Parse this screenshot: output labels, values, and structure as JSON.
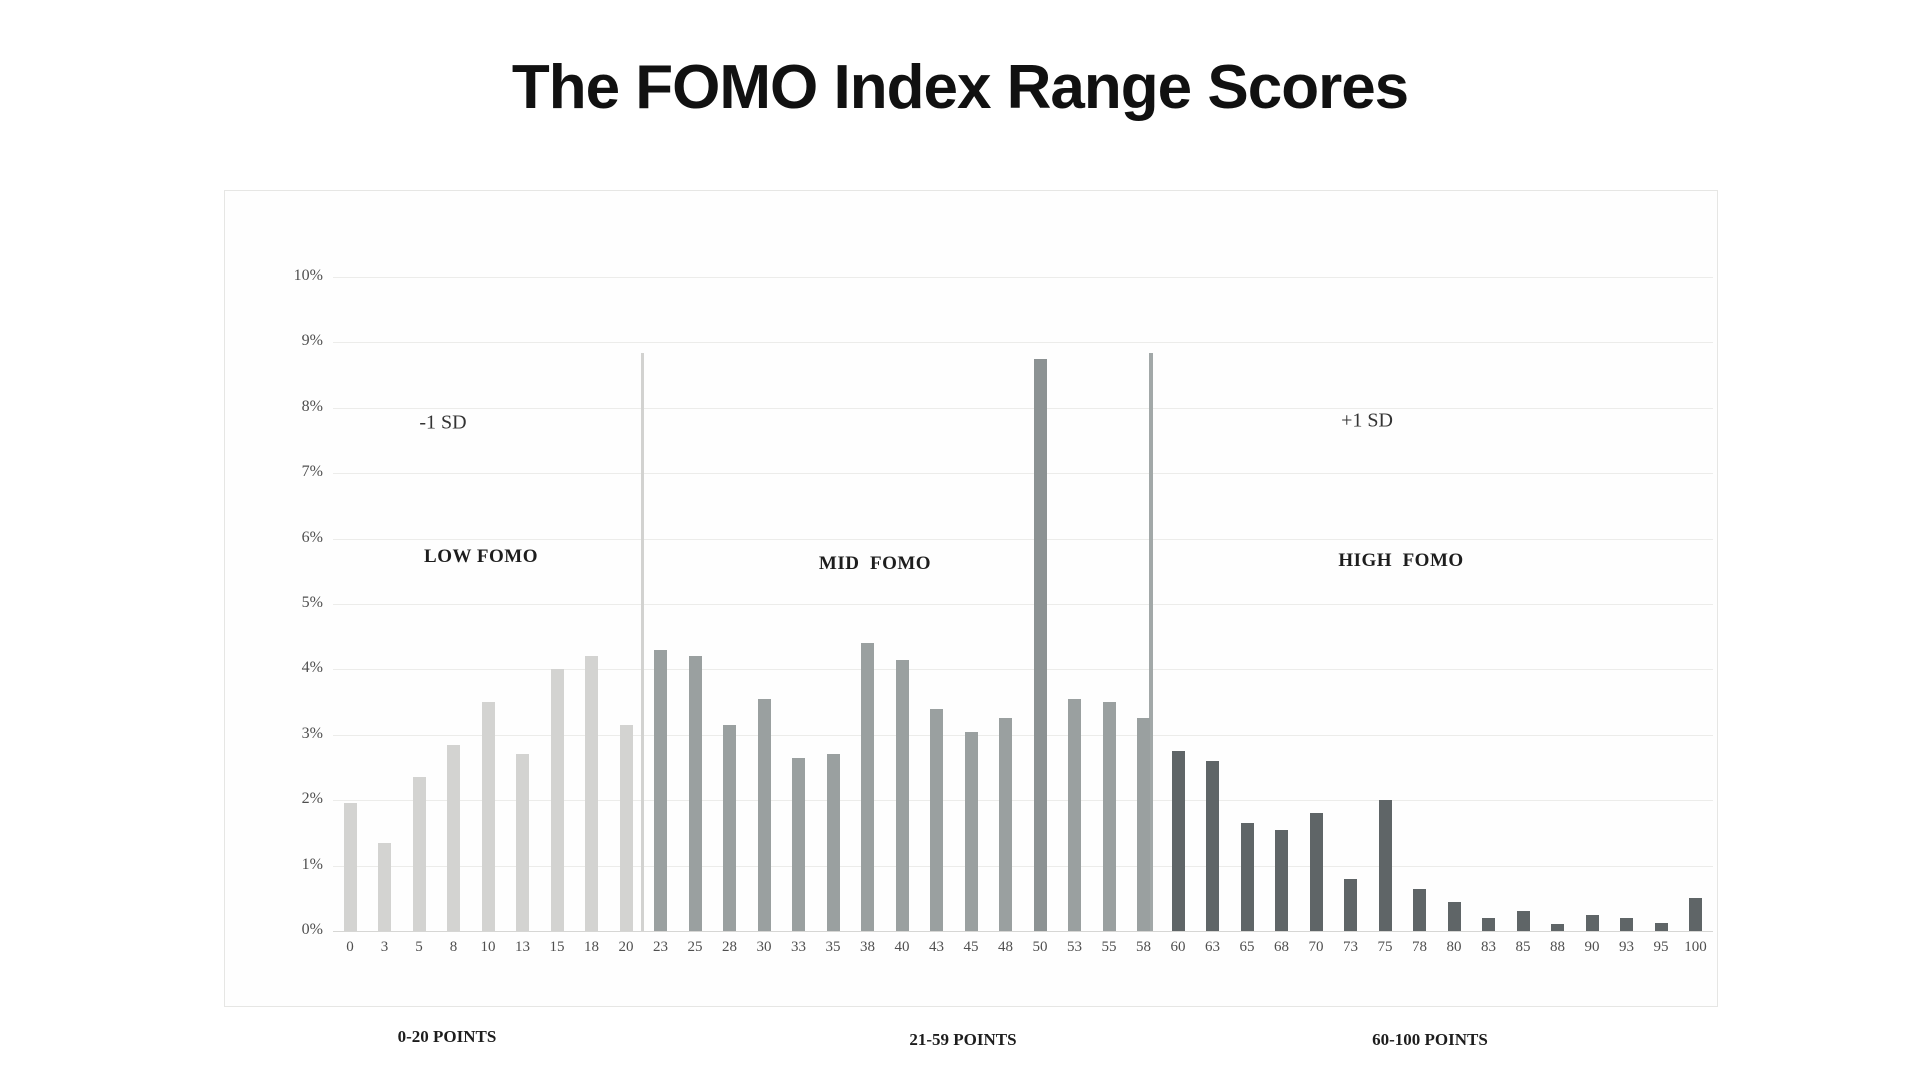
{
  "title": "The FOMO Index Range Scores",
  "labels": {
    "sd_minus": "-1 SD",
    "sd_plus": "+1 SD",
    "zone_low": "LOW FOMO",
    "zone_mid": "MID  FOMO",
    "zone_high": "HIGH  FOMO",
    "range_low": "0-20 POINTS",
    "range_mid": "21-59 POINTS",
    "range_high": "60-100 POINTS"
  },
  "chart_data": {
    "type": "bar",
    "title": "The FOMO Index Range Scores",
    "xlabel": "",
    "ylabel": "",
    "ylim": [
      0,
      10
    ],
    "grid": true,
    "legend": "none",
    "y_ticks": [
      "0%",
      "1%",
      "2%",
      "3%",
      "4%",
      "5%",
      "6%",
      "7%",
      "8%",
      "9%",
      "10%"
    ],
    "categories": [
      "0",
      "3",
      "5",
      "8",
      "10",
      "13",
      "15",
      "18",
      "20",
      "23",
      "25",
      "28",
      "30",
      "33",
      "35",
      "38",
      "40",
      "43",
      "45",
      "48",
      "50",
      "53",
      "55",
      "58",
      "60",
      "63",
      "65",
      "68",
      "70",
      "73",
      "75",
      "78",
      "80",
      "83",
      "85",
      "88",
      "90",
      "93",
      "95",
      "100"
    ],
    "values": [
      1.95,
      1.35,
      2.35,
      2.85,
      3.5,
      2.7,
      4.0,
      4.2,
      3.15,
      4.3,
      4.2,
      3.15,
      3.55,
      2.65,
      2.7,
      4.4,
      4.15,
      3.4,
      3.05,
      3.25,
      8.75,
      3.55,
      3.5,
      3.25,
      2.75,
      2.6,
      1.65,
      1.55,
      1.8,
      0.8,
      2.0,
      0.65,
      0.45,
      0.2,
      0.3,
      0.1,
      0.25,
      0.2,
      0.12,
      0.5
    ],
    "groups": [
      {
        "label": "LOW FOMO",
        "range_label": "0-20 POINTS",
        "start_index": 0,
        "end_index": 8,
        "color": "#d3d3d1"
      },
      {
        "label": "MID FOMO",
        "range_label": "21-59 POINTS",
        "start_index": 9,
        "end_index": 23,
        "color": "#9aa0a0"
      },
      {
        "label": "HIGH FOMO",
        "range_label": "60-100 POINTS",
        "start_index": 24,
        "end_index": 39,
        "color": "#5f6567"
      }
    ],
    "peak_bar": {
      "category": "50",
      "index": 20,
      "value": 8.75,
      "color": "#8c9293"
    },
    "sd_lines": [
      {
        "label": "-1 SD",
        "position": "between 20 and 23",
        "color": "#d2d2d0"
      },
      {
        "label": "+1 SD",
        "position": "between 58 and 60",
        "color": "#a2a8a8"
      }
    ],
    "colors": {
      "grid": "#ececea",
      "axis_line": "#d6d6d4",
      "tick_text": "#4f4f4f"
    }
  }
}
